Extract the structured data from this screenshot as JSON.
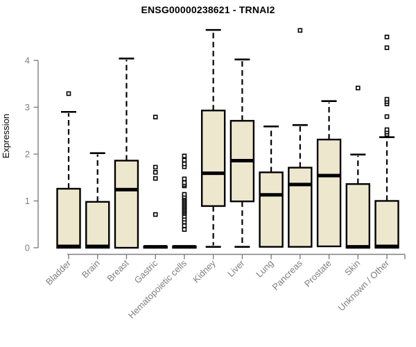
{
  "chart_data": {
    "type": "boxplot",
    "title": "ENSG00000238621 - TRNAI2",
    "ylabel": "Expression",
    "xlabel": "",
    "ylim": [
      0,
      4.7
    ],
    "yticks": [
      0,
      1,
      2,
      3,
      4
    ],
    "grid": false,
    "legend": "none",
    "categories": [
      "Bladder",
      "Brain",
      "Breast",
      "Gastric",
      "Hematopoietic cells",
      "Kidney",
      "Liver",
      "Lung",
      "Pancreas",
      "Prostate",
      "Skin",
      "Unknown / Other"
    ],
    "series": [
      {
        "category": "Bladder",
        "q1": 0,
        "median": 0.03,
        "q3": 1.26,
        "whisker_low": 0,
        "whisker_high": 2.9,
        "outliers": [
          3.29
        ]
      },
      {
        "category": "Brain",
        "q1": 0,
        "median": 0.03,
        "q3": 0.98,
        "whisker_low": 0,
        "whisker_high": 2.02,
        "outliers": []
      },
      {
        "category": "Breast",
        "q1": 0,
        "median": 1.24,
        "q3": 1.86,
        "whisker_low": 0,
        "whisker_high": 4.04,
        "outliers": []
      },
      {
        "category": "Gastric",
        "q1": 0,
        "median": 0.02,
        "q3": 0.03,
        "whisker_low": 0,
        "whisker_high": 0.03,
        "outliers": [
          0.71,
          1.48,
          1.61,
          1.72,
          2.79
        ]
      },
      {
        "category": "Hematopoietic cells",
        "q1": 0,
        "median": 0.02,
        "q3": 0.03,
        "whisker_low": 0,
        "whisker_high": 0.03,
        "outliers": [
          0.39,
          0.47,
          0.55,
          0.61,
          0.67,
          0.73,
          0.76,
          0.79,
          0.82,
          0.85,
          0.88,
          0.91,
          0.94,
          0.97,
          1.0,
          1.03,
          1.06,
          1.09,
          1.14,
          1.32,
          1.35,
          1.39,
          1.47,
          1.73,
          1.79,
          1.87,
          1.96
        ]
      },
      {
        "category": "Kidney",
        "q1": 0.89,
        "median": 1.59,
        "q3": 2.93,
        "whisker_low": 0.02,
        "whisker_high": 4.65,
        "outliers": []
      },
      {
        "category": "Liver",
        "q1": 0.99,
        "median": 1.86,
        "q3": 2.71,
        "whisker_low": 0.02,
        "whisker_high": 4.02,
        "outliers": []
      },
      {
        "category": "Lung",
        "q1": 0.02,
        "median": 1.13,
        "q3": 1.61,
        "whisker_low": 0.02,
        "whisker_high": 2.59,
        "outliers": []
      },
      {
        "category": "Pancreas",
        "q1": 0.02,
        "median": 1.35,
        "q3": 1.71,
        "whisker_low": 0.02,
        "whisker_high": 2.62,
        "outliers": [
          4.64
        ]
      },
      {
        "category": "Prostate",
        "q1": 0.03,
        "median": 1.54,
        "q3": 2.31,
        "whisker_low": 0.03,
        "whisker_high": 3.13,
        "outliers": []
      },
      {
        "category": "Skin",
        "q1": 0,
        "median": 0.02,
        "q3": 1.36,
        "whisker_low": 0,
        "whisker_high": 1.99,
        "outliers": [
          3.41
        ]
      },
      {
        "category": "Unknown / Other",
        "q1": 0,
        "median": 0.03,
        "q3": 1.0,
        "whisker_low": 0,
        "whisker_high": 2.36,
        "outliers": [
          2.42,
          2.47,
          2.52,
          2.8,
          3.07,
          3.12,
          3.17,
          4.27,
          4.5
        ]
      }
    ]
  },
  "style": {
    "box_fill": "#EDE7CE",
    "box_border": "#000000",
    "median_color": "#000000",
    "whisker_color": "#000000",
    "outlier_fill": "#ffffff",
    "axis_color": "#7E7E7E",
    "label_color": "#7E7E7E",
    "title_color": "#000000",
    "background": "#ffffff"
  }
}
